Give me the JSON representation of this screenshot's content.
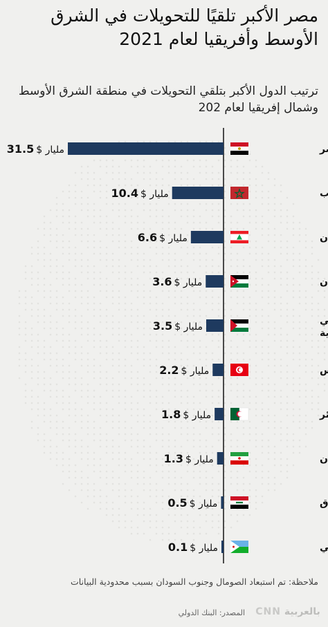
{
  "header": {
    "title": "مصر الأكبر تلقيًا للتحويلات في الشرق الأوسط وأفريقيا لعام 2021",
    "subtitle": "ترتيب الدول الأكبر بتلقي التحويلات في منطقة الشرق الأوسط وشمال إفريقيا لعام 202"
  },
  "footer": {
    "note": "ملاحظة: تم استبعاد الصومال وجنوب السودان بسبب محدودية البيانات",
    "source": "المصدر: البنك الدولي",
    "logo": "CNN بالعربية"
  },
  "colors": {
    "bar": "#1e3a5f",
    "axis": "#111111",
    "background": "#f0f0ee"
  },
  "chart_data": {
    "type": "bar",
    "orientation": "horizontal",
    "unit_prefix": "$",
    "unit_suffix": "مليار",
    "categories": [
      "مصر",
      "المغرب",
      "لبنان",
      "الأردن",
      "الأراضي الفلسطينية",
      "تونس",
      "الجزائر",
      "إيران",
      "العراق",
      "جيبوتي"
    ],
    "values": [
      31.5,
      10.4,
      6.6,
      3.6,
      3.5,
      2.2,
      1.8,
      1.3,
      0.5,
      0.1
    ],
    "value_labels": [
      "31.5",
      "10.4",
      "6.6",
      "3.6",
      "3.5",
      "2.2",
      "1.8",
      "1.3",
      "0.5",
      "0.1"
    ],
    "flags": [
      "egypt-flag",
      "morocco-flag",
      "lebanon-flag",
      "jordan-flag",
      "palestine-flag",
      "tunisia-flag",
      "algeria-flag",
      "iran-flag",
      "iraq-flag",
      "djibouti-flag"
    ],
    "xlim": [
      0,
      31.5
    ]
  }
}
